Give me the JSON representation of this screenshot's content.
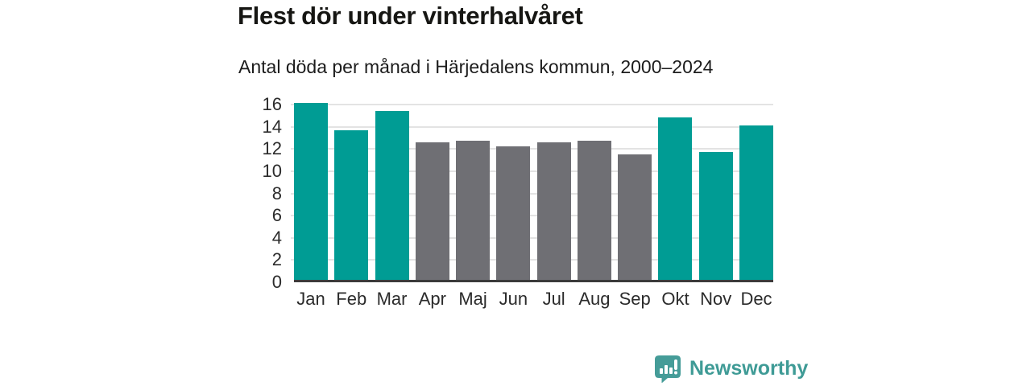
{
  "header": {
    "title": "Flest dör under vinterhalvåret",
    "subtitle": "Antal döda per månad i Härjedalens kommun, 2000–2024"
  },
  "chart_data": {
    "type": "bar",
    "title": "Flest dör under vinterhalvåret",
    "subtitle": "Antal döda per månad i Härjedalens kommun, 2000–2024",
    "categories": [
      "Jan",
      "Feb",
      "Mar",
      "Apr",
      "Maj",
      "Jun",
      "Jul",
      "Aug",
      "Sep",
      "Okt",
      "Nov",
      "Dec"
    ],
    "values": [
      15.9,
      13.5,
      15.2,
      12.4,
      12.5,
      12.0,
      12.4,
      12.5,
      11.3,
      14.6,
      11.5,
      13.9
    ],
    "bar_colors": [
      "winter",
      "winter",
      "winter",
      "summer",
      "summer",
      "summer",
      "summer",
      "summer",
      "summer",
      "winter",
      "winter",
      "winter"
    ],
    "colors": {
      "winter": "#009c94",
      "summer": "#6f6f74"
    },
    "xlabel": "",
    "ylabel": "",
    "ylim": [
      0,
      16
    ],
    "yticks": [
      0,
      2,
      4,
      6,
      8,
      10,
      12,
      14,
      16
    ],
    "grid": "horizontal-only",
    "legend": "none"
  },
  "footer": {
    "brand": "Newsworthy",
    "logo_icon": "bar-chart-speech-bubble-icon",
    "brand_color": "#3f9b96"
  }
}
